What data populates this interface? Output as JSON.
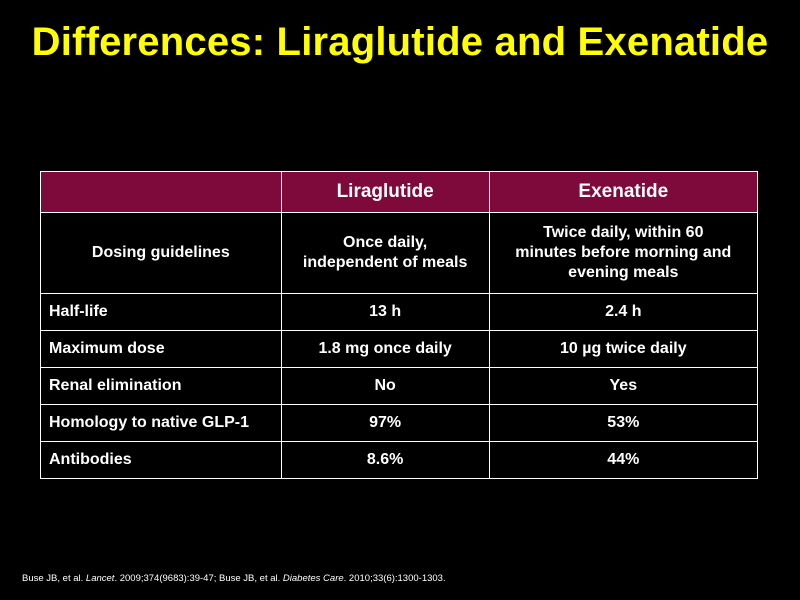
{
  "title": "Differences: Liraglutide and Exenatide",
  "colors": {
    "background": "#000000",
    "title": "#ffff00",
    "header_fill": "#7d0a3b",
    "text": "#ffffff",
    "border": "#ffffff"
  },
  "table": {
    "headers": [
      "",
      "Liraglutide",
      "Exenatide"
    ],
    "rows": [
      {
        "label": "Dosing guidelines",
        "liraglutide": [
          "Once daily,",
          "independent of meals"
        ],
        "exenatide": [
          "Twice daily, within 60",
          "minutes before morning and",
          "evening meals"
        ]
      },
      {
        "label": "Half-life",
        "liraglutide": "13 h",
        "exenatide": "2.4 h"
      },
      {
        "label": "Maximum dose",
        "liraglutide": "1.8 mg once daily",
        "exenatide": "10 µg twice daily"
      },
      {
        "label": "Renal elimination",
        "liraglutide": "No",
        "exenatide": "Yes"
      },
      {
        "label": "Homology to native GLP-1",
        "liraglutide": "97%",
        "exenatide": "53%"
      },
      {
        "label": "Antibodies",
        "liraglutide": "8.6%",
        "exenatide": "44%"
      }
    ]
  },
  "citation": {
    "part1": "Buse JB, et al. ",
    "journal1": "Lancet",
    "part2": ". 2009;374(9683):39-47; Buse JB, et al. ",
    "journal2": "Diabetes Care",
    "part3": ". 2010;33(6):1300-1303."
  }
}
